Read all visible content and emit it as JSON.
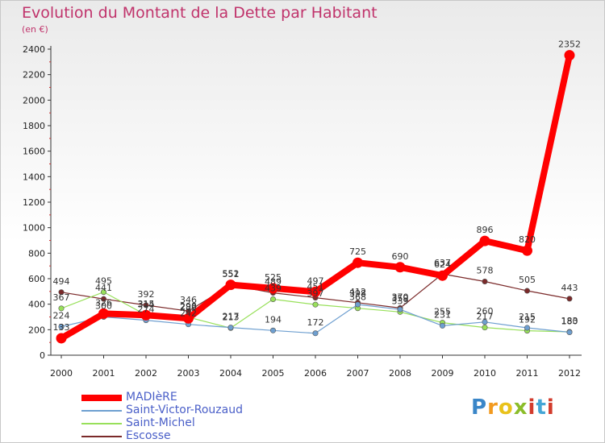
{
  "title": "Evolution du Montant de la Dette par Habitant",
  "subtitle": "(en €)",
  "logo": "Proxiti",
  "chart_data": {
    "type": "line",
    "title": "Evolution du Montant de la Dette par Habitant",
    "subtitle": "(en €)",
    "xlabel": "",
    "ylabel": "",
    "ylim": [
      0,
      2400
    ],
    "y_ticks": [
      0,
      200,
      400,
      600,
      800,
      1000,
      1200,
      1400,
      1600,
      1800,
      2000,
      2200,
      2400
    ],
    "x": [
      "2000",
      "2001",
      "2002",
      "2003",
      "2004",
      "2005",
      "2006",
      "2007",
      "2008",
      "2009",
      "2010",
      "2011",
      "2012"
    ],
    "grid": false,
    "legend_position": "bottom-left",
    "series": [
      {
        "name": "Escosse",
        "color": "#7b2a2a",
        "values": [
          494,
          441,
          392,
          346,
          551,
          489,
          451,
          412,
          370,
          637,
          578,
          505,
          443
        ]
      },
      {
        "name": "Saint-Michel",
        "color": "#98e05a",
        "values": [
          367,
          495,
          315,
          298,
          213,
          439,
          397,
          368,
          339,
          255,
          217,
          192,
          183
        ]
      },
      {
        "name": "Saint-Victor-Rouzaud",
        "color": "#6e9fd0",
        "values": [
          224,
          300,
          274,
          242,
          217,
          194,
          172,
          398,
          359,
          231,
          260,
          215,
          180
        ]
      },
      {
        "name": "MADIèRE",
        "color": "#ff0000",
        "values": [
          133,
          326,
          314,
          289,
          552,
          525,
          497,
          725,
          690,
          624,
          896,
          820,
          2352
        ]
      }
    ]
  }
}
